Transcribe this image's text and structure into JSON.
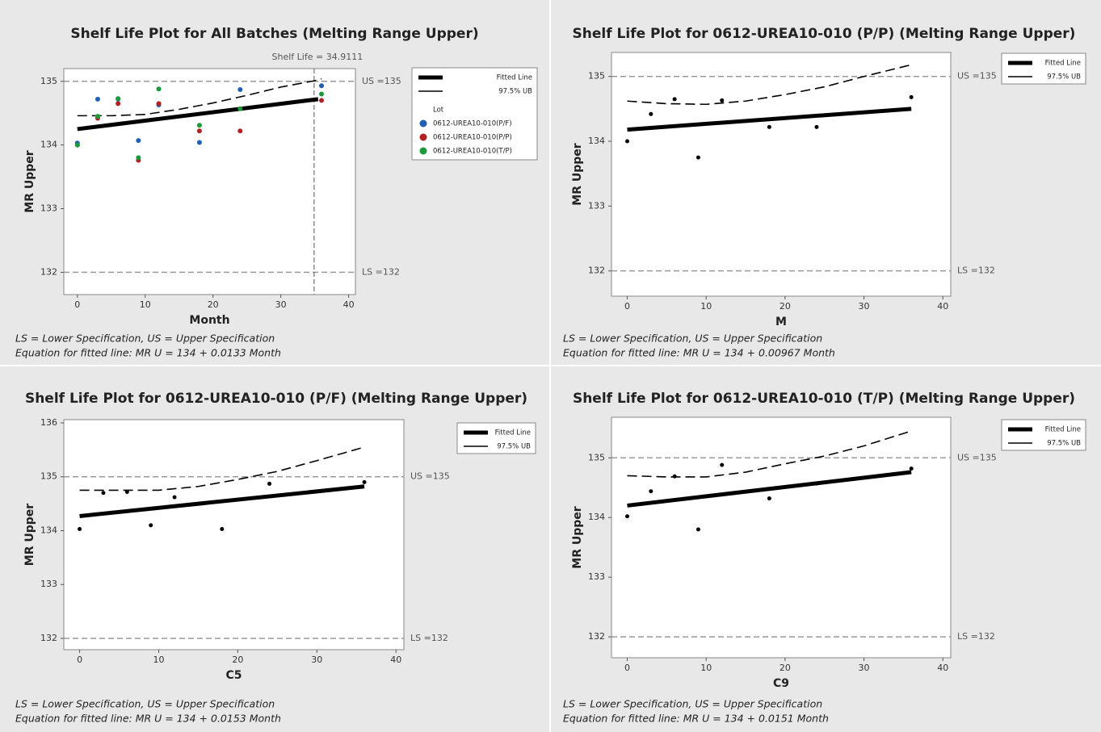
{
  "chart_data": [
    {
      "type": "scatter",
      "title": "Shelf Life Plot for All Batches (Melting Range Upper)",
      "x_label": "Month",
      "y_label": "MR Upper",
      "xlim": [
        -2,
        41
      ],
      "ylim": [
        131.65,
        135.2
      ],
      "xticks": [
        0,
        10,
        20,
        30,
        40
      ],
      "yticks": [
        132,
        133,
        134,
        135
      ],
      "ref_lines": [
        {
          "value": 135,
          "label": "US =135"
        },
        {
          "value": 132,
          "label": "LS =132"
        }
      ],
      "shelf_life": {
        "value": 34.9111,
        "label": "Shelf Life = 34.9111"
      },
      "lines": [
        {
          "name": "Fitted Line",
          "color": "#000000",
          "dash": false,
          "x": [
            0,
            35.5
          ],
          "values": [
            134.25,
            134.72
          ]
        },
        {
          "name": "97.5% UB",
          "color": "#000000",
          "dash": true,
          "x": [
            0,
            5,
            10,
            15,
            20,
            25,
            30,
            35,
            36
          ],
          "values": [
            134.46,
            134.46,
            134.48,
            134.56,
            134.66,
            134.78,
            134.91,
            135.01,
            135.04
          ]
        }
      ],
      "legend_title": "Lot",
      "points": [
        {
          "name": "0612-UREA10-010(P/F)",
          "color": "#1f5fb4",
          "x": [
            0,
            3,
            6,
            9,
            12,
            18,
            24,
            36
          ],
          "values": [
            134.03,
            134.72,
            134.72,
            134.07,
            134.63,
            134.04,
            134.87,
            134.93
          ]
        },
        {
          "name": "0612-UREA10-010(P/P)",
          "color": "#b22222",
          "x": [
            0,
            3,
            6,
            9,
            12,
            18,
            24,
            36
          ],
          "values": [
            134.0,
            134.42,
            134.65,
            133.76,
            134.65,
            134.22,
            134.22,
            134.7
          ]
        },
        {
          "name": "0612-UREA10-010(T/P)",
          "color": "#1a9a3a",
          "x": [
            0,
            3,
            6,
            9,
            12,
            18,
            24,
            36
          ],
          "values": [
            134.0,
            134.45,
            134.73,
            133.8,
            134.88,
            134.31,
            134.57,
            134.8
          ]
        }
      ],
      "notes": [
        "LS = Lower Specification, US = Upper Specification",
        "Equation for fitted line: MR U = 134 + 0.0133 Month"
      ]
    },
    {
      "type": "scatter",
      "title": "Shelf Life Plot for 0612-UREA10-010 (P/P) (Melting Range Upper)",
      "x_label": "M",
      "y_label": "MR Upper",
      "xlim": [
        -2,
        41
      ],
      "ylim": [
        131.61,
        135.37
      ],
      "xticks": [
        0,
        10,
        20,
        30,
        40
      ],
      "yticks": [
        132,
        133,
        134,
        135
      ],
      "ref_lines": [
        {
          "value": 135,
          "label": "US =135"
        },
        {
          "value": 132,
          "label": "LS =132"
        }
      ],
      "lines": [
        {
          "name": "Fitted Line",
          "color": "#000000",
          "dash": false,
          "x": [
            0,
            36
          ],
          "values": [
            134.18,
            134.5
          ]
        },
        {
          "name": "97.5% UB",
          "color": "#000000",
          "dash": true,
          "x": [
            0,
            5,
            10,
            15,
            20,
            25,
            30,
            36
          ],
          "values": [
            134.62,
            134.58,
            134.57,
            134.62,
            134.72,
            134.84,
            135.0,
            135.18
          ]
        }
      ],
      "points": [
        {
          "color": "#000000",
          "x": [
            0,
            3,
            6,
            9,
            12,
            18,
            24,
            36
          ],
          "values": [
            134.0,
            134.42,
            134.65,
            133.75,
            134.63,
            134.22,
            134.22,
            134.68
          ]
        }
      ],
      "notes": [
        "LS = Lower Specification, US = Upper Specification",
        "Equation for fitted line: MR U = 134 + 0.00967 Month"
      ]
    },
    {
      "type": "scatter",
      "title": "Shelf Life Plot for 0612-UREA10-010 (P/F) (Melting Range Upper)",
      "x_label": "C5",
      "y_label": "MR Upper",
      "xlim": [
        -2,
        41
      ],
      "ylim": [
        131.79,
        136.06
      ],
      "xticks": [
        0,
        10,
        20,
        30,
        40
      ],
      "yticks": [
        132,
        133,
        134,
        135,
        136
      ],
      "ref_lines": [
        {
          "value": 135,
          "label": "US =135"
        },
        {
          "value": 132,
          "label": "LS =132"
        }
      ],
      "lines": [
        {
          "name": "Fitted Line",
          "color": "#000000",
          "dash": false,
          "x": [
            0,
            36
          ],
          "values": [
            134.27,
            134.82
          ]
        },
        {
          "name": "97.5% UB",
          "color": "#000000",
          "dash": true,
          "x": [
            0,
            5,
            10,
            15,
            20,
            25,
            30,
            36
          ],
          "values": [
            134.75,
            134.75,
            134.75,
            134.82,
            134.95,
            135.1,
            135.3,
            135.55
          ]
        }
      ],
      "points": [
        {
          "color": "#000000",
          "x": [
            0,
            3,
            6,
            9,
            12,
            18,
            24,
            36
          ],
          "values": [
            134.03,
            134.7,
            134.72,
            134.1,
            134.62,
            134.03,
            134.87,
            134.9
          ]
        }
      ],
      "notes": [
        "LS = Lower Specification, US = Upper Specification",
        "Equation for fitted line: MR U = 134 + 0.0153 Month"
      ]
    },
    {
      "type": "scatter",
      "title": "Shelf Life Plot for 0612-UREA10-010 (T/P) (Melting Range Upper)",
      "x_label": "C9",
      "y_label": "MR Upper",
      "xlim": [
        -2,
        41
      ],
      "ylim": [
        131.65,
        135.68
      ],
      "xticks": [
        0,
        10,
        20,
        30,
        40
      ],
      "yticks": [
        132,
        133,
        134,
        135
      ],
      "ref_lines": [
        {
          "value": 135,
          "label": "US =135"
        },
        {
          "value": 132,
          "label": "LS =132"
        }
      ],
      "lines": [
        {
          "name": "Fitted Line",
          "color": "#000000",
          "dash": false,
          "x": [
            0,
            36
          ],
          "values": [
            134.2,
            134.76
          ]
        },
        {
          "name": "97.5% UB",
          "color": "#000000",
          "dash": true,
          "x": [
            0,
            5,
            10,
            15,
            20,
            25,
            30,
            36
          ],
          "values": [
            134.7,
            134.68,
            134.68,
            134.76,
            134.9,
            135.03,
            135.2,
            135.45
          ]
        }
      ],
      "points": [
        {
          "color": "#000000",
          "x": [
            0,
            3,
            6,
            9,
            12,
            18,
            24,
            36
          ],
          "values": [
            134.02,
            134.44,
            134.69,
            133.8,
            134.88,
            134.32,
            134.57,
            134.82
          ]
        }
      ],
      "notes": [
        "LS = Lower Specification, US = Upper Specification",
        "Equation for fitted line: MR U = 134 + 0.0151 Month"
      ]
    }
  ]
}
